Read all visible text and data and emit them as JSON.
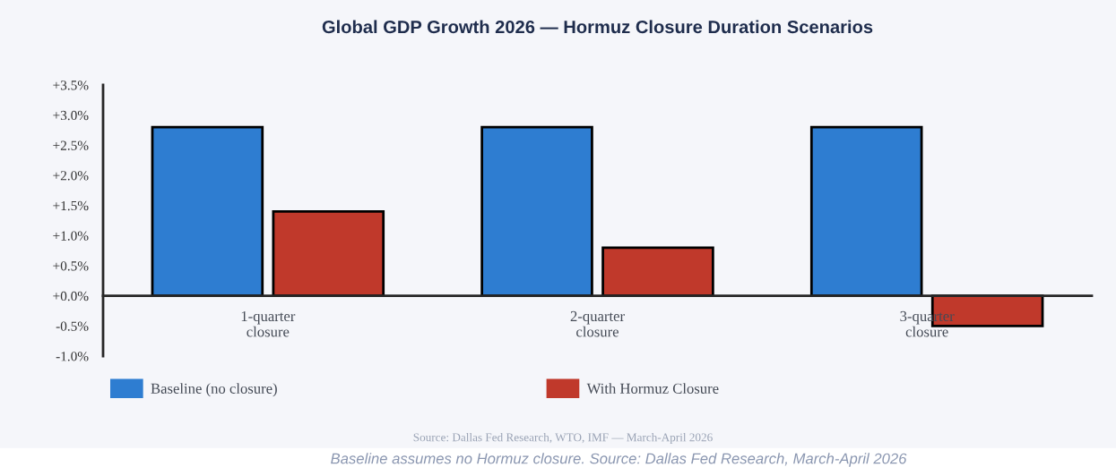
{
  "chart_data": {
    "type": "bar",
    "title": "Global GDP Growth 2026 — Hormuz Closure Duration Scenarios",
    "categories": [
      "1-quarter\nclosure",
      "2-quarter\nclosure",
      "3-quarter\nclosure"
    ],
    "series": [
      {
        "name": "Baseline (no closure)",
        "color": "#2e7dd1",
        "values": [
          2.8,
          2.8,
          2.8
        ]
      },
      {
        "name": "With Hormuz Closure",
        "color": "#c0392b",
        "values": [
          1.4,
          0.8,
          -0.5
        ]
      }
    ],
    "ylim": [
      -1.0,
      3.5
    ],
    "yticks": [
      {
        "value": -1.0,
        "label": "-1.0%"
      },
      {
        "value": -0.5,
        "label": "-0.5%"
      },
      {
        "value": 0.0,
        "label": "+0.0%"
      },
      {
        "value": 0.5,
        "label": "+0.5%"
      },
      {
        "value": 1.0,
        "label": "+1.0%"
      },
      {
        "value": 1.5,
        "label": "+1.5%"
      },
      {
        "value": 2.0,
        "label": "+2.0%"
      },
      {
        "value": 2.5,
        "label": "+2.5%"
      },
      {
        "value": 3.0,
        "label": "+3.0%"
      },
      {
        "value": 3.5,
        "label": "+3.5%"
      }
    ],
    "grid": false,
    "legend": "bottom",
    "annotations": [
      "Source: Dallas Fed Research, WTO, IMF — March-April 2026",
      "Baseline assumes no Hormuz closure. Source: Dallas Fed Research, March-April 2026"
    ]
  }
}
